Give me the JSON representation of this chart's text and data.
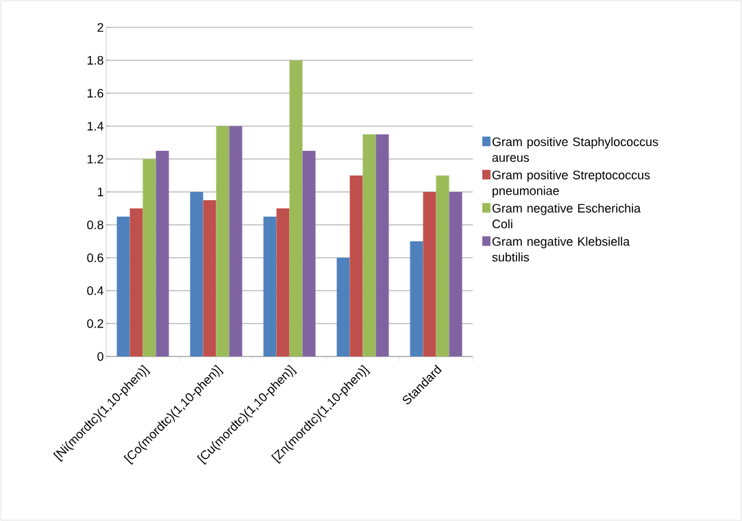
{
  "chart_data": {
    "type": "bar",
    "categories": [
      "[Ni(mordtc)(1,10-phen)]",
      "[Co(mordtc)(1,10-phen)]",
      "[Cu(mordtc)(1,10-phen)]",
      "[Zn(mordtc)(1,10-phen)]",
      "Standard"
    ],
    "series": [
      {
        "name": "Gram positive  Staphylococcus aureus",
        "color": "#4f81bd",
        "values": [
          0.85,
          1,
          0.85,
          0.6,
          0.7
        ]
      },
      {
        "name": "Gram positive  Streptococcus pneumoniae",
        "color": "#c0504d",
        "values": [
          0.9,
          0.95,
          0.9,
          1.1,
          1
        ]
      },
      {
        "name": "Gram negative Escherichia Coli",
        "color": "#9bbb59",
        "values": [
          1.2,
          1.4,
          1.8,
          1.35,
          1.1
        ]
      },
      {
        "name": "Gram negative Klebsiella subtilis",
        "color": "#8064a2",
        "values": [
          1.25,
          1.4,
          1.25,
          1.35,
          1
        ]
      }
    ],
    "ylim": [
      0,
      2
    ],
    "yticks": [
      0,
      0.2,
      0.4,
      0.6,
      0.8,
      1,
      1.2,
      1.4,
      1.6,
      1.8,
      2
    ],
    "grid": "y",
    "legend": "right"
  }
}
